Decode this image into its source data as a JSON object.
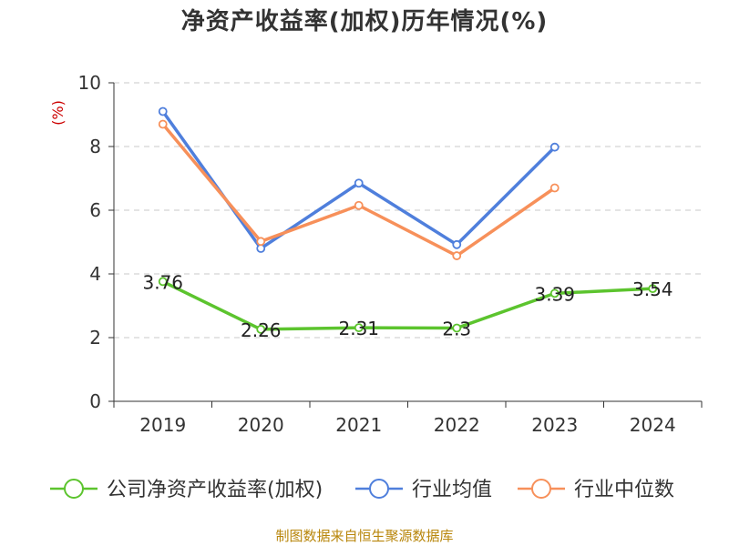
{
  "chart_data": {
    "type": "line",
    "title": "净资产收益率(加权)历年情况(%)",
    "ylabel": "(%)",
    "xlabel": "",
    "categories": [
      "2019",
      "2020",
      "2021",
      "2022",
      "2023",
      "2024"
    ],
    "ylim": [
      0,
      10
    ],
    "yticks": [
      "0",
      "2",
      "4",
      "6",
      "8",
      "10"
    ],
    "grid": true,
    "legend_position": "bottom",
    "series": [
      {
        "name": "公司净资产收益率(加权)",
        "color": "#5cc42e",
        "values": [
          3.76,
          2.26,
          2.31,
          2.3,
          3.39,
          3.54
        ],
        "labels": [
          "3.76",
          "2.26",
          "2.31",
          "2.3",
          "3.39",
          "3.54"
        ]
      },
      {
        "name": "行业均值",
        "color": "#4f7fdc",
        "values": [
          9.1,
          4.8,
          6.85,
          4.92,
          7.98,
          null
        ]
      },
      {
        "name": "行业中位数",
        "color": "#f7905a",
        "values": [
          8.7,
          5.02,
          6.15,
          4.57,
          6.7,
          null
        ]
      }
    ]
  },
  "source_note": "制图数据来自恒生聚源数据库"
}
